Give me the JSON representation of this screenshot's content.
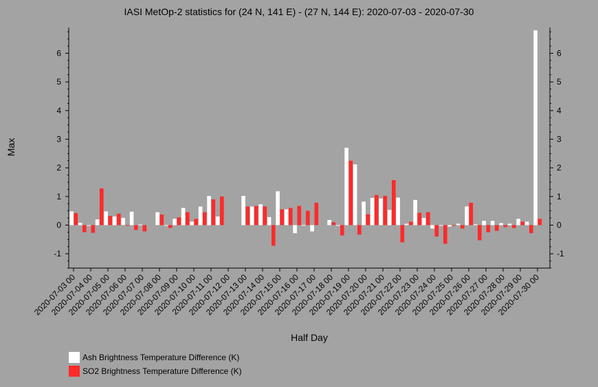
{
  "chart_data": {
    "type": "bar",
    "title": "IASI MetOp-2 statistics for (24 N, 141 E) - (27 N, 144 E): 2020-07-03 - 2020-07-30",
    "xlabel": "Half Day",
    "ylabel": "Max",
    "ylim": [
      -1.5,
      6.9
    ],
    "yticks": [
      -1,
      0,
      1,
      2,
      3,
      4,
      5,
      6
    ],
    "x_tick_labels": [
      "2020-07-03 00",
      "2020-07-04 00",
      "2020-07-05 00",
      "2020-07-06 00",
      "2020-07-07 00",
      "2020-07-08 00",
      "2020-07-09 00",
      "2020-07-10 00",
      "2020-07-11 00",
      "2020-07-12 00",
      "2020-07-13 00",
      "2020-07-14 00",
      "2020-07-15 00",
      "2020-07-16 00",
      "2020-07-17 00",
      "2020-07-18 00",
      "2020-07-19 00",
      "2020-07-20 00",
      "2020-07-21 00",
      "2020-07-22 00",
      "2020-07-23 00",
      "2020-07-24 00",
      "2020-07-25 00",
      "2020-07-26 00",
      "2020-07-27 00",
      "2020-07-28 00",
      "2020-07-29 00",
      "2020-07-30 00"
    ],
    "categories": [
      "2020-07-03 00",
      "2020-07-03 12",
      "2020-07-04 00",
      "2020-07-04 12",
      "2020-07-05 00",
      "2020-07-05 12",
      "2020-07-06 00",
      "2020-07-06 12",
      "2020-07-07 00",
      "2020-07-07 12",
      "2020-07-08 00",
      "2020-07-08 12",
      "2020-07-09 00",
      "2020-07-09 12",
      "2020-07-10 00",
      "2020-07-10 12",
      "2020-07-11 00",
      "2020-07-11 12",
      "2020-07-12 00",
      "2020-07-12 12",
      "2020-07-13 00",
      "2020-07-13 12",
      "2020-07-14 00",
      "2020-07-14 12",
      "2020-07-15 00",
      "2020-07-15 12",
      "2020-07-16 00",
      "2020-07-16 12",
      "2020-07-17 00",
      "2020-07-17 12",
      "2020-07-18 00",
      "2020-07-18 12",
      "2020-07-19 00",
      "2020-07-19 12",
      "2020-07-20 00",
      "2020-07-20 12",
      "2020-07-21 00",
      "2020-07-21 12",
      "2020-07-22 00",
      "2020-07-22 12",
      "2020-07-23 00",
      "2020-07-23 12",
      "2020-07-24 00",
      "2020-07-24 12",
      "2020-07-25 00",
      "2020-07-25 12",
      "2020-07-26 00",
      "2020-07-26 12",
      "2020-07-27 00",
      "2020-07-27 12",
      "2020-07-28 00",
      "2020-07-28 12",
      "2020-07-29 00",
      "2020-07-29 12",
      "2020-07-30 00"
    ],
    "series": [
      {
        "name": "Ash Brightness Temperature Difference (K)",
        "color": "#ffffff",
        "values": [
          0.48,
          0.08,
          0.0,
          0.2,
          0.48,
          0.3,
          0.25,
          0.47,
          0.02,
          null,
          0.45,
          0.0,
          0.22,
          0.6,
          0.12,
          0.65,
          1.02,
          0.3,
          null,
          null,
          1.02,
          0.65,
          0.73,
          0.28,
          1.18,
          0.55,
          -0.28,
          0.0,
          -0.22,
          null,
          0.18,
          0.0,
          2.7,
          2.12,
          0.82,
          0.95,
          0.93,
          0.53,
          0.96,
          0.05,
          0.88,
          0.25,
          -0.12,
          0.0,
          -0.05,
          0.05,
          0.65,
          0.03,
          0.15,
          0.15,
          0.07,
          0.05,
          0.22,
          0.12,
          6.8
        ]
      },
      {
        "name": "SO2 Brightness Temperature Difference (K)",
        "color": "#ff2a2a",
        "values": [
          0.42,
          -0.25,
          -0.27,
          1.28,
          0.32,
          0.4,
          0.0,
          -0.17,
          -0.22,
          null,
          0.37,
          -0.1,
          0.27,
          0.45,
          0.22,
          0.45,
          0.9,
          1.0,
          null,
          null,
          0.65,
          0.67,
          0.65,
          -0.72,
          0.55,
          0.6,
          0.67,
          0.5,
          0.78,
          null,
          0.1,
          -0.36,
          2.25,
          -0.33,
          0.38,
          1.05,
          1.02,
          1.57,
          -0.6,
          0.12,
          0.43,
          0.45,
          -0.4,
          -0.65,
          0.0,
          -0.12,
          0.78,
          -0.53,
          -0.25,
          -0.2,
          -0.07,
          -0.1,
          0.12,
          -0.28,
          0.22
        ]
      }
    ],
    "grid": false,
    "legend_position": "bottom-left"
  }
}
